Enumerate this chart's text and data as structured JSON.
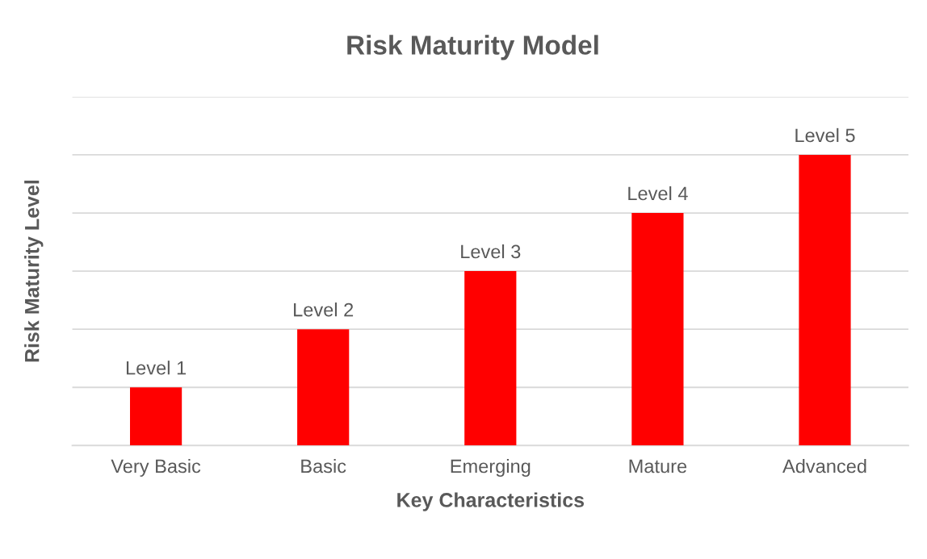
{
  "chart_data": {
    "type": "bar",
    "title": "Risk Maturity Model",
    "xlabel": "Key Characteristics",
    "ylabel": "Risk Maturity Level",
    "categories": [
      "Very Basic",
      "Basic",
      "Emerging",
      "Mature",
      "Advanced"
    ],
    "values": [
      1,
      2,
      3,
      4,
      5
    ],
    "color": "#ff0000",
    "value_labels": [
      "Level 1",
      "Level 2",
      "Level 3",
      "Level 4",
      "Level 5"
    ],
    "ylim": [
      0,
      6
    ],
    "yticks": [
      {
        "value": 0,
        "label": null
      },
      {
        "value": 1,
        "label": null
      },
      {
        "value": 2,
        "label": null
      },
      {
        "value": 3,
        "label": null
      },
      {
        "value": 4,
        "label": null
      },
      {
        "value": 5,
        "label": null
      },
      {
        "value": 6,
        "label": null
      }
    ],
    "tick_labels": "x",
    "grid": "y",
    "legend": false
  }
}
